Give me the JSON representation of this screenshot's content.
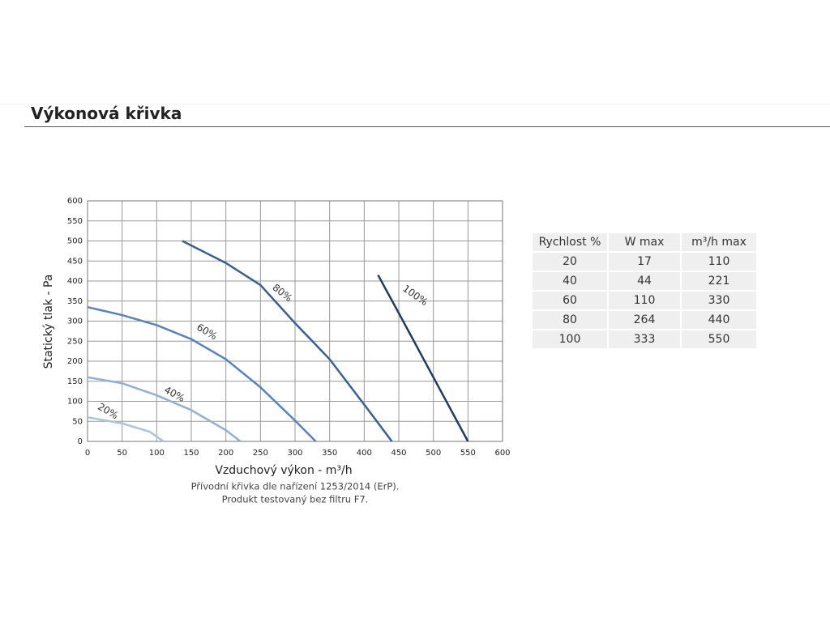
{
  "header": {
    "title": "Výkonová křivka"
  },
  "chart_data": {
    "type": "line",
    "xlabel": "Vzduchový výkon - m³/h",
    "ylabel": "Statický tlak - Pa",
    "xlim": [
      0,
      600
    ],
    "xticks": [
      0,
      50,
      100,
      150,
      200,
      250,
      300,
      350,
      400,
      450,
      500,
      550,
      600
    ],
    "ylim": [
      0,
      600
    ],
    "yticks": [
      0,
      50,
      100,
      150,
      200,
      250,
      300,
      350,
      400,
      450,
      500,
      550,
      600
    ],
    "grid": true,
    "series": [
      {
        "name": "20%",
        "color": "#a9c3e0",
        "x": [
          0,
          50,
          90,
          100,
          110
        ],
        "values": [
          60,
          45,
          24,
          12,
          0
        ]
      },
      {
        "name": "40%",
        "color": "#8fb0d6",
        "x": [
          0,
          50,
          100,
          150,
          200,
          221
        ],
        "values": [
          160,
          145,
          115,
          78,
          28,
          0
        ]
      },
      {
        "name": "60%",
        "color": "#5583bf",
        "x": [
          0,
          50,
          100,
          150,
          200,
          250,
          300,
          330
        ],
        "values": [
          335,
          315,
          290,
          255,
          205,
          135,
          52,
          0
        ]
      },
      {
        "name": "80%",
        "color": "#35609a",
        "x": [
          137,
          200,
          250,
          300,
          350,
          400,
          440
        ],
        "values": [
          500,
          445,
          390,
          295,
          205,
          92,
          0
        ]
      },
      {
        "name": "100%",
        "color": "#1f3b62",
        "x": [
          420,
          450,
          500,
          550
        ],
        "values": [
          415,
          320,
          160,
          0
        ]
      }
    ]
  },
  "notes": [
    "Přívodní křivka dle nařízení 1253/2014 (ErP).",
    "Produkt testovaný bez filtru F7."
  ],
  "table": {
    "header": [
      "Rychlost %",
      "W max",
      "m³/h max"
    ],
    "rows": [
      [
        "20",
        "17",
        "110"
      ],
      [
        "40",
        "44",
        "221"
      ],
      [
        "60",
        "110",
        "330"
      ],
      [
        "80",
        "264",
        "440"
      ],
      [
        "100",
        "333",
        "550"
      ]
    ]
  }
}
